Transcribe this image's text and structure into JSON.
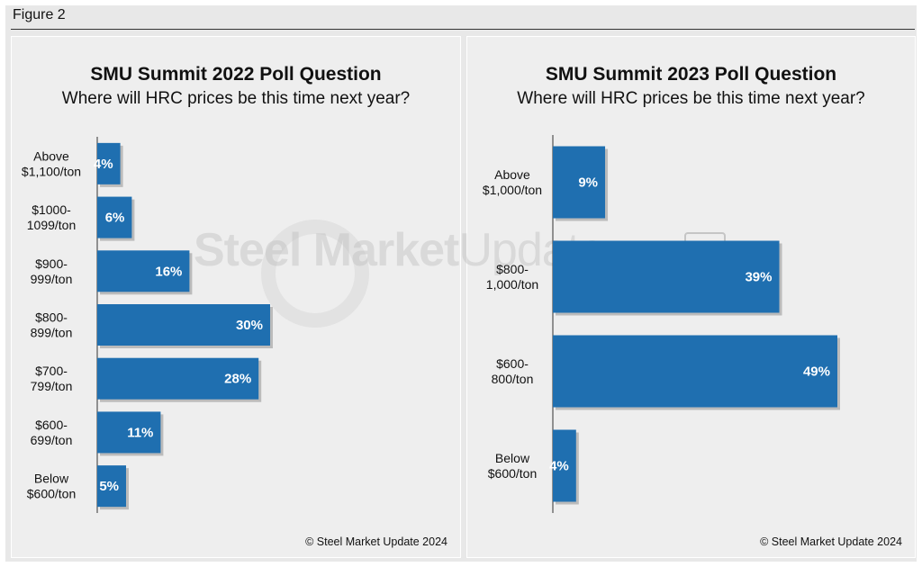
{
  "figure_label": "Figure 2",
  "colors": {
    "bar": "#1f6fb0",
    "bar_shadow": "#9a9a9a",
    "axis": "#333333"
  },
  "watermark": {
    "bold": "Steel Market",
    "light": "Update",
    "logo": "CRU"
  },
  "chart_data": [
    {
      "type": "bar",
      "orientation": "horizontal",
      "title": "SMU Summit 2022 Poll Question",
      "subtitle": "Where will HRC prices be this time next year?",
      "source": "© Steel Market Update 2024",
      "unit": "%",
      "xlim": [
        0,
        31
      ],
      "categories": [
        [
          "Above",
          "$1,100/ton"
        ],
        [
          "$1000-",
          "1099/ton"
        ],
        [
          "$900-",
          "999/ton"
        ],
        [
          "$800-",
          "899/ton"
        ],
        [
          "$700-",
          "799/ton"
        ],
        [
          "$600-",
          "699/ton"
        ],
        [
          "Below",
          "$600/ton"
        ]
      ],
      "values": [
        4,
        6,
        16,
        30,
        28,
        11,
        5
      ],
      "labels": [
        "4%",
        "6%",
        "16%",
        "30%",
        "28%",
        "11%",
        "5%"
      ]
    },
    {
      "type": "bar",
      "orientation": "horizontal",
      "title": "SMU Summit 2023 Poll Question",
      "subtitle": "Where will HRC prices be this time next year?",
      "source": "© Steel Market Update 2024",
      "unit": "%",
      "xlim": [
        0,
        50
      ],
      "categories": [
        [
          "Above",
          "$1,000/ton"
        ],
        [
          "$800-",
          "1,000/ton"
        ],
        [
          "$600-",
          "800/ton"
        ],
        [
          "Below",
          "$600/ton"
        ]
      ],
      "values": [
        9,
        39,
        49,
        4
      ],
      "labels": [
        "9%",
        "39%",
        "49%",
        "4%"
      ]
    }
  ]
}
